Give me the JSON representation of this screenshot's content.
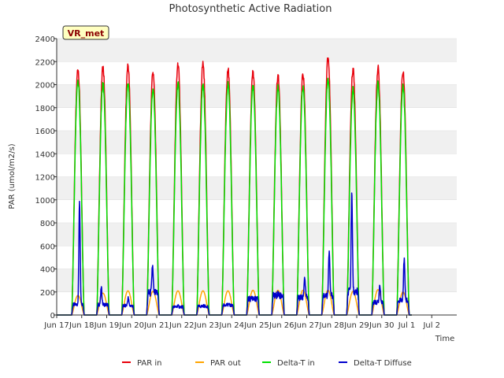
{
  "chart_data": {
    "type": "line",
    "title": "Photosynthetic Active Radiation",
    "xlabel": "Time",
    "ylabel": "PAR (umol/m2/s)",
    "site_badge": "VR_met",
    "ylim": [
      0,
      2400
    ],
    "yticks": [
      0,
      200,
      400,
      600,
      800,
      1000,
      1200,
      1400,
      1600,
      1800,
      2000,
      2200,
      2400
    ],
    "xlim": [
      0,
      16
    ],
    "xticks": [
      {
        "value": 0,
        "label": "Jun 17"
      },
      {
        "value": 1,
        "label": "Jun 18"
      },
      {
        "value": 2,
        "label": "Jun 19"
      },
      {
        "value": 3,
        "label": "Jun 20"
      },
      {
        "value": 4,
        "label": "Jun 21"
      },
      {
        "value": 5,
        "label": "Jun 22"
      },
      {
        "value": 6,
        "label": "Jun 23"
      },
      {
        "value": 7,
        "label": "Jun 24"
      },
      {
        "value": 8,
        "label": "Jun 25"
      },
      {
        "value": 9,
        "label": "Jun 26"
      },
      {
        "value": 10,
        "label": "Jun 27"
      },
      {
        "value": 11,
        "label": "Jun 28"
      },
      {
        "value": 12,
        "label": "Jun 29"
      },
      {
        "value": 13,
        "label": "Jun 30"
      },
      {
        "value": 14,
        "label": "Jul 1"
      },
      {
        "value": 15,
        "label": "Jul 2"
      }
    ],
    "day_start": 0.6,
    "day_length": 0.5,
    "series": [
      {
        "name": "PAR in",
        "color": "#e8000b",
        "daily_peaks": [
          2140,
          2150,
          2170,
          2100,
          2180,
          2185,
          2140,
          2110,
          2085,
          2090,
          2240,
          2140,
          2145,
          2120
        ]
      },
      {
        "name": "PAR out",
        "color": "#ffa500",
        "daily_peaks": [
          170,
          190,
          210,
          205,
          210,
          210,
          210,
          215,
          215,
          215,
          215,
          205,
          220,
          200
        ]
      },
      {
        "name": "Delta-T in",
        "color": "#00e000",
        "daily_peaks": [
          2040,
          2010,
          2010,
          1950,
          2010,
          2000,
          2000,
          1990,
          1980,
          1975,
          2050,
          1960,
          2010,
          1990
        ]
      },
      {
        "name": "Delta-T Diffuse",
        "color": "#0000cc",
        "daily_peaks": [
          990,
          240,
          150,
          430,
          80,
          80,
          100,
          150,
          190,
          330,
          550,
          1100,
          260,
          490
        ],
        "daily_base": [
          90,
          90,
          80,
          190,
          70,
          75,
          85,
          140,
          170,
          150,
          170,
          200,
          110,
          130
        ]
      }
    ],
    "legend_position": "bottom"
  }
}
